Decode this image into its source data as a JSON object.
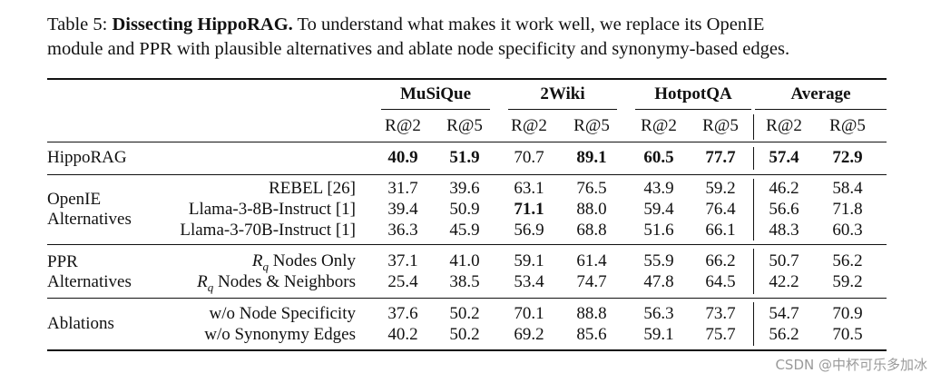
{
  "caption": {
    "prefix": "Table 5: ",
    "bold": "Dissecting HippoRAG.",
    "line1_rest": " To understand what makes it work well, we replace its OpenIE",
    "line2": "module and PPR with plausible alternatives and ablate node specificity and synonymy-based edges."
  },
  "groups": [
    "MuSiQue",
    "2Wiki",
    "HotpotQA",
    "Average"
  ],
  "metrics": [
    "R@2",
    "R@5",
    "R@2",
    "R@5",
    "R@2",
    "R@5",
    "R@2",
    "R@5"
  ],
  "rows": {
    "hipporag": {
      "label": "HippoRAG",
      "values": [
        "40.9",
        "51.9",
        "70.7",
        "89.1",
        "60.5",
        "77.7",
        "57.4",
        "72.9"
      ]
    },
    "openie": {
      "label_line1": "OpenIE",
      "label_line2": "Alternatives",
      "items": [
        {
          "method": "REBEL [26]",
          "values": [
            "31.7",
            "39.6",
            "63.1",
            "76.5",
            "43.9",
            "59.2",
            "46.2",
            "58.4"
          ]
        },
        {
          "method": "Llama-3-8B-Instruct [1]",
          "values": [
            "39.4",
            "50.9",
            "71.1",
            "88.0",
            "59.4",
            "76.4",
            "56.6",
            "71.8"
          ]
        },
        {
          "method": "Llama-3-70B-Instruct [1]",
          "values": [
            "36.3",
            "45.9",
            "56.9",
            "68.8",
            "51.6",
            "66.1",
            "48.3",
            "60.3"
          ]
        }
      ]
    },
    "ppr": {
      "label_line1": "PPR",
      "label_line2": "Alternatives",
      "items": [
        {
          "method_sym": "R",
          "method_sub": "q",
          "method_rest": " Nodes Only",
          "values": [
            "37.1",
            "41.0",
            "59.1",
            "61.4",
            "55.9",
            "66.2",
            "50.7",
            "56.2"
          ]
        },
        {
          "method_sym": "R",
          "method_sub": "q",
          "method_rest": " Nodes & Neighbors",
          "values": [
            "25.4",
            "38.5",
            "53.4",
            "74.7",
            "47.8",
            "64.5",
            "42.2",
            "59.2"
          ]
        }
      ]
    },
    "ablations": {
      "label": "Ablations",
      "items": [
        {
          "method": "w/o Node Specificity",
          "values": [
            "37.6",
            "50.2",
            "70.1",
            "88.8",
            "56.3",
            "73.7",
            "54.7",
            "70.9"
          ]
        },
        {
          "method": "w/o Synonymy Edges",
          "values": [
            "40.2",
            "50.2",
            "69.2",
            "85.6",
            "59.1",
            "75.7",
            "56.2",
            "70.5"
          ]
        }
      ]
    }
  },
  "watermark": "CSDN @中杯可乐多加冰"
}
